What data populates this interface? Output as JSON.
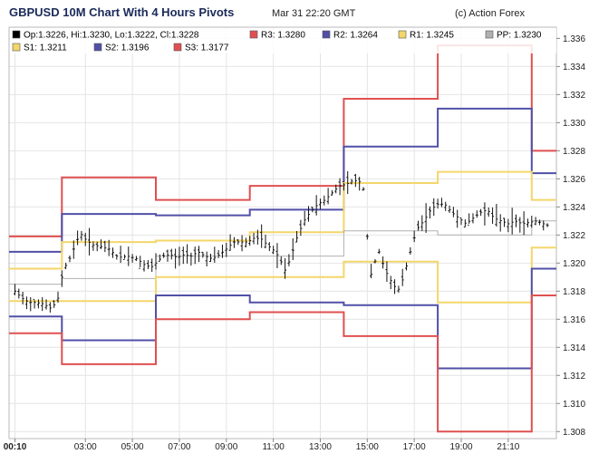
{
  "header": {
    "title": "GBPUSD 10M Chart With 4 Hours Pivots",
    "timestamp": "Mar 31 22:20 GMT",
    "credit": "(c) Action Forex"
  },
  "chart_data": {
    "type": "line",
    "ylim": [
      1.3075,
      1.3368
    ],
    "y_ticks": [
      1.308,
      1.31,
      1.312,
      1.314,
      1.316,
      1.318,
      1.32,
      1.322,
      1.324,
      1.326,
      1.328,
      1.33,
      1.332,
      1.334,
      1.336
    ],
    "y_tick_labels": [
      "1.308",
      "1.310",
      "1.312",
      "1.314",
      "1.316",
      "1.318",
      "1.320",
      "1.322",
      "1.324",
      "1.326",
      "1.328",
      "1.330",
      "1.332",
      "1.334",
      "1.336"
    ],
    "x_range": [
      -0.25,
      23.05
    ],
    "x_ticks": [
      {
        "hour": 0,
        "label": "00:10",
        "bold": true
      },
      {
        "hour": 3,
        "label": "03:00"
      },
      {
        "hour": 5,
        "label": "05:00"
      },
      {
        "hour": 7,
        "label": "07:00"
      },
      {
        "hour": 9,
        "label": "09:00"
      },
      {
        "hour": 11,
        "label": "11:00"
      },
      {
        "hour": 13,
        "label": "13:00"
      },
      {
        "hour": 15,
        "label": "15:00"
      },
      {
        "hour": 17,
        "label": "17:00"
      },
      {
        "hour": 19,
        "label": "19:00"
      },
      {
        "hour": 21,
        "label": "21:10"
      }
    ],
    "grid": true,
    "legend": [
      {
        "text": "Op:1.3226, Hi:1.3230, Lo:1.3222, Cl:1.3228",
        "color": "#000000"
      },
      {
        "text": "R3: 1.3280",
        "color": "#e05050"
      },
      {
        "text": "R2: 1.3264",
        "color": "#5050a8"
      },
      {
        "text": "R1: 1.3245",
        "color": "#f4d66a"
      },
      {
        "text": "PP: 1.3230",
        "color": "#b0b0b0"
      },
      {
        "text": "S1: 1.3211",
        "color": "#f4d66a"
      },
      {
        "text": "S2: 1.3196",
        "color": "#5050a8"
      },
      {
        "text": "S3: 1.3177",
        "color": "#e05050"
      }
    ],
    "period_starts": [
      -0.25,
      2.0,
      6.0,
      10.0,
      14.0,
      18.0,
      22.0
    ],
    "series": [
      {
        "key": "R3",
        "color": "#e05050",
        "values": [
          1.3219,
          1.3261,
          1.3245,
          1.3255,
          1.3317,
          1.3355,
          1.328
        ]
      },
      {
        "key": "R2",
        "color": "#5050a8",
        "values": [
          1.3208,
          1.3235,
          1.3234,
          1.3238,
          1.3283,
          1.331,
          1.3264
        ]
      },
      {
        "key": "R1",
        "color": "#f4d66a",
        "values": [
          1.3196,
          1.3215,
          1.3216,
          1.3222,
          1.3257,
          1.3265,
          1.3245
        ]
      },
      {
        "key": "PP",
        "color": "#b0b0b0",
        "values": [
          1.3185,
          1.3189,
          1.3205,
          1.3205,
          1.3223,
          1.322,
          1.323
        ]
      },
      {
        "key": "S1",
        "color": "#f4d66a",
        "values": [
          1.3173,
          1.3173,
          1.319,
          1.319,
          1.3201,
          1.3172,
          1.3211
        ]
      },
      {
        "key": "S2",
        "color": "#5050a8",
        "values": [
          1.3162,
          1.3145,
          1.3177,
          1.3172,
          1.317,
          1.3125,
          1.3196
        ]
      },
      {
        "key": "S3",
        "color": "#e05050",
        "values": [
          1.315,
          1.3128,
          1.316,
          1.3165,
          1.3148,
          1.308,
          1.3177
        ]
      }
    ],
    "price": [
      [
        0.0,
        1.318
      ],
      [
        0.3,
        1.3175
      ],
      [
        0.6,
        1.3172
      ],
      [
        0.9,
        1.3172
      ],
      [
        1.2,
        1.3171
      ],
      [
        1.5,
        1.3168
      ],
      [
        1.8,
        1.3172
      ],
      [
        2.0,
        1.319
      ],
      [
        2.2,
        1.32
      ],
      [
        2.4,
        1.3205
      ],
      [
        2.6,
        1.3215
      ],
      [
        2.8,
        1.3221
      ],
      [
        3.0,
        1.3217
      ],
      [
        3.3,
        1.3213
      ],
      [
        3.6,
        1.3212
      ],
      [
        4.0,
        1.321
      ],
      [
        4.4,
        1.3204
      ],
      [
        4.8,
        1.3205
      ],
      [
        5.2,
        1.3203
      ],
      [
        5.5,
        1.3199
      ],
      [
        5.8,
        1.3197
      ],
      [
        6.0,
        1.32
      ],
      [
        6.3,
        1.3205
      ],
      [
        6.6,
        1.3206
      ],
      [
        6.9,
        1.3204
      ],
      [
        7.2,
        1.3206
      ],
      [
        7.5,
        1.3205
      ],
      [
        7.8,
        1.3208
      ],
      [
        8.1,
        1.3205
      ],
      [
        8.4,
        1.3203
      ],
      [
        8.7,
        1.3206
      ],
      [
        9.0,
        1.321
      ],
      [
        9.3,
        1.3215
      ],
      [
        9.6,
        1.3215
      ],
      [
        9.9,
        1.3215
      ],
      [
        10.2,
        1.3218
      ],
      [
        10.5,
        1.3217
      ],
      [
        10.8,
        1.3212
      ],
      [
        11.1,
        1.3208
      ],
      [
        11.3,
        1.3202
      ],
      [
        11.5,
        1.3195
      ],
      [
        11.7,
        1.3202
      ],
      [
        12.0,
        1.3218
      ],
      [
        12.3,
        1.323
      ],
      [
        12.6,
        1.3237
      ],
      [
        12.9,
        1.3242
      ],
      [
        13.2,
        1.3245
      ],
      [
        13.5,
        1.325
      ],
      [
        13.8,
        1.3255
      ],
      [
        14.1,
        1.3256
      ],
      [
        14.4,
        1.3259
      ],
      [
        14.7,
        1.3258
      ],
      [
        14.9,
        1.325
      ],
      [
        15.1,
        1.3188
      ],
      [
        15.3,
        1.32
      ],
      [
        15.5,
        1.3208
      ],
      [
        15.7,
        1.3198
      ],
      [
        15.9,
        1.319
      ],
      [
        16.1,
        1.3185
      ],
      [
        16.3,
        1.318
      ],
      [
        16.5,
        1.3188
      ],
      [
        16.7,
        1.32
      ],
      [
        16.9,
        1.3212
      ],
      [
        17.1,
        1.3224
      ],
      [
        17.4,
        1.323
      ],
      [
        17.7,
        1.3238
      ],
      [
        18.0,
        1.3242
      ],
      [
        18.3,
        1.3242
      ],
      [
        18.6,
        1.3236
      ],
      [
        18.9,
        1.3232
      ],
      [
        19.2,
        1.3228
      ],
      [
        19.5,
        1.3232
      ],
      [
        19.8,
        1.3236
      ],
      [
        20.1,
        1.3238
      ],
      [
        20.4,
        1.3232
      ],
      [
        20.7,
        1.323
      ],
      [
        21.0,
        1.3228
      ],
      [
        21.3,
        1.323
      ],
      [
        21.6,
        1.3228
      ],
      [
        21.9,
        1.3229
      ],
      [
        22.2,
        1.323
      ],
      [
        22.5,
        1.3228
      ],
      [
        22.8,
        1.3226
      ]
    ]
  }
}
